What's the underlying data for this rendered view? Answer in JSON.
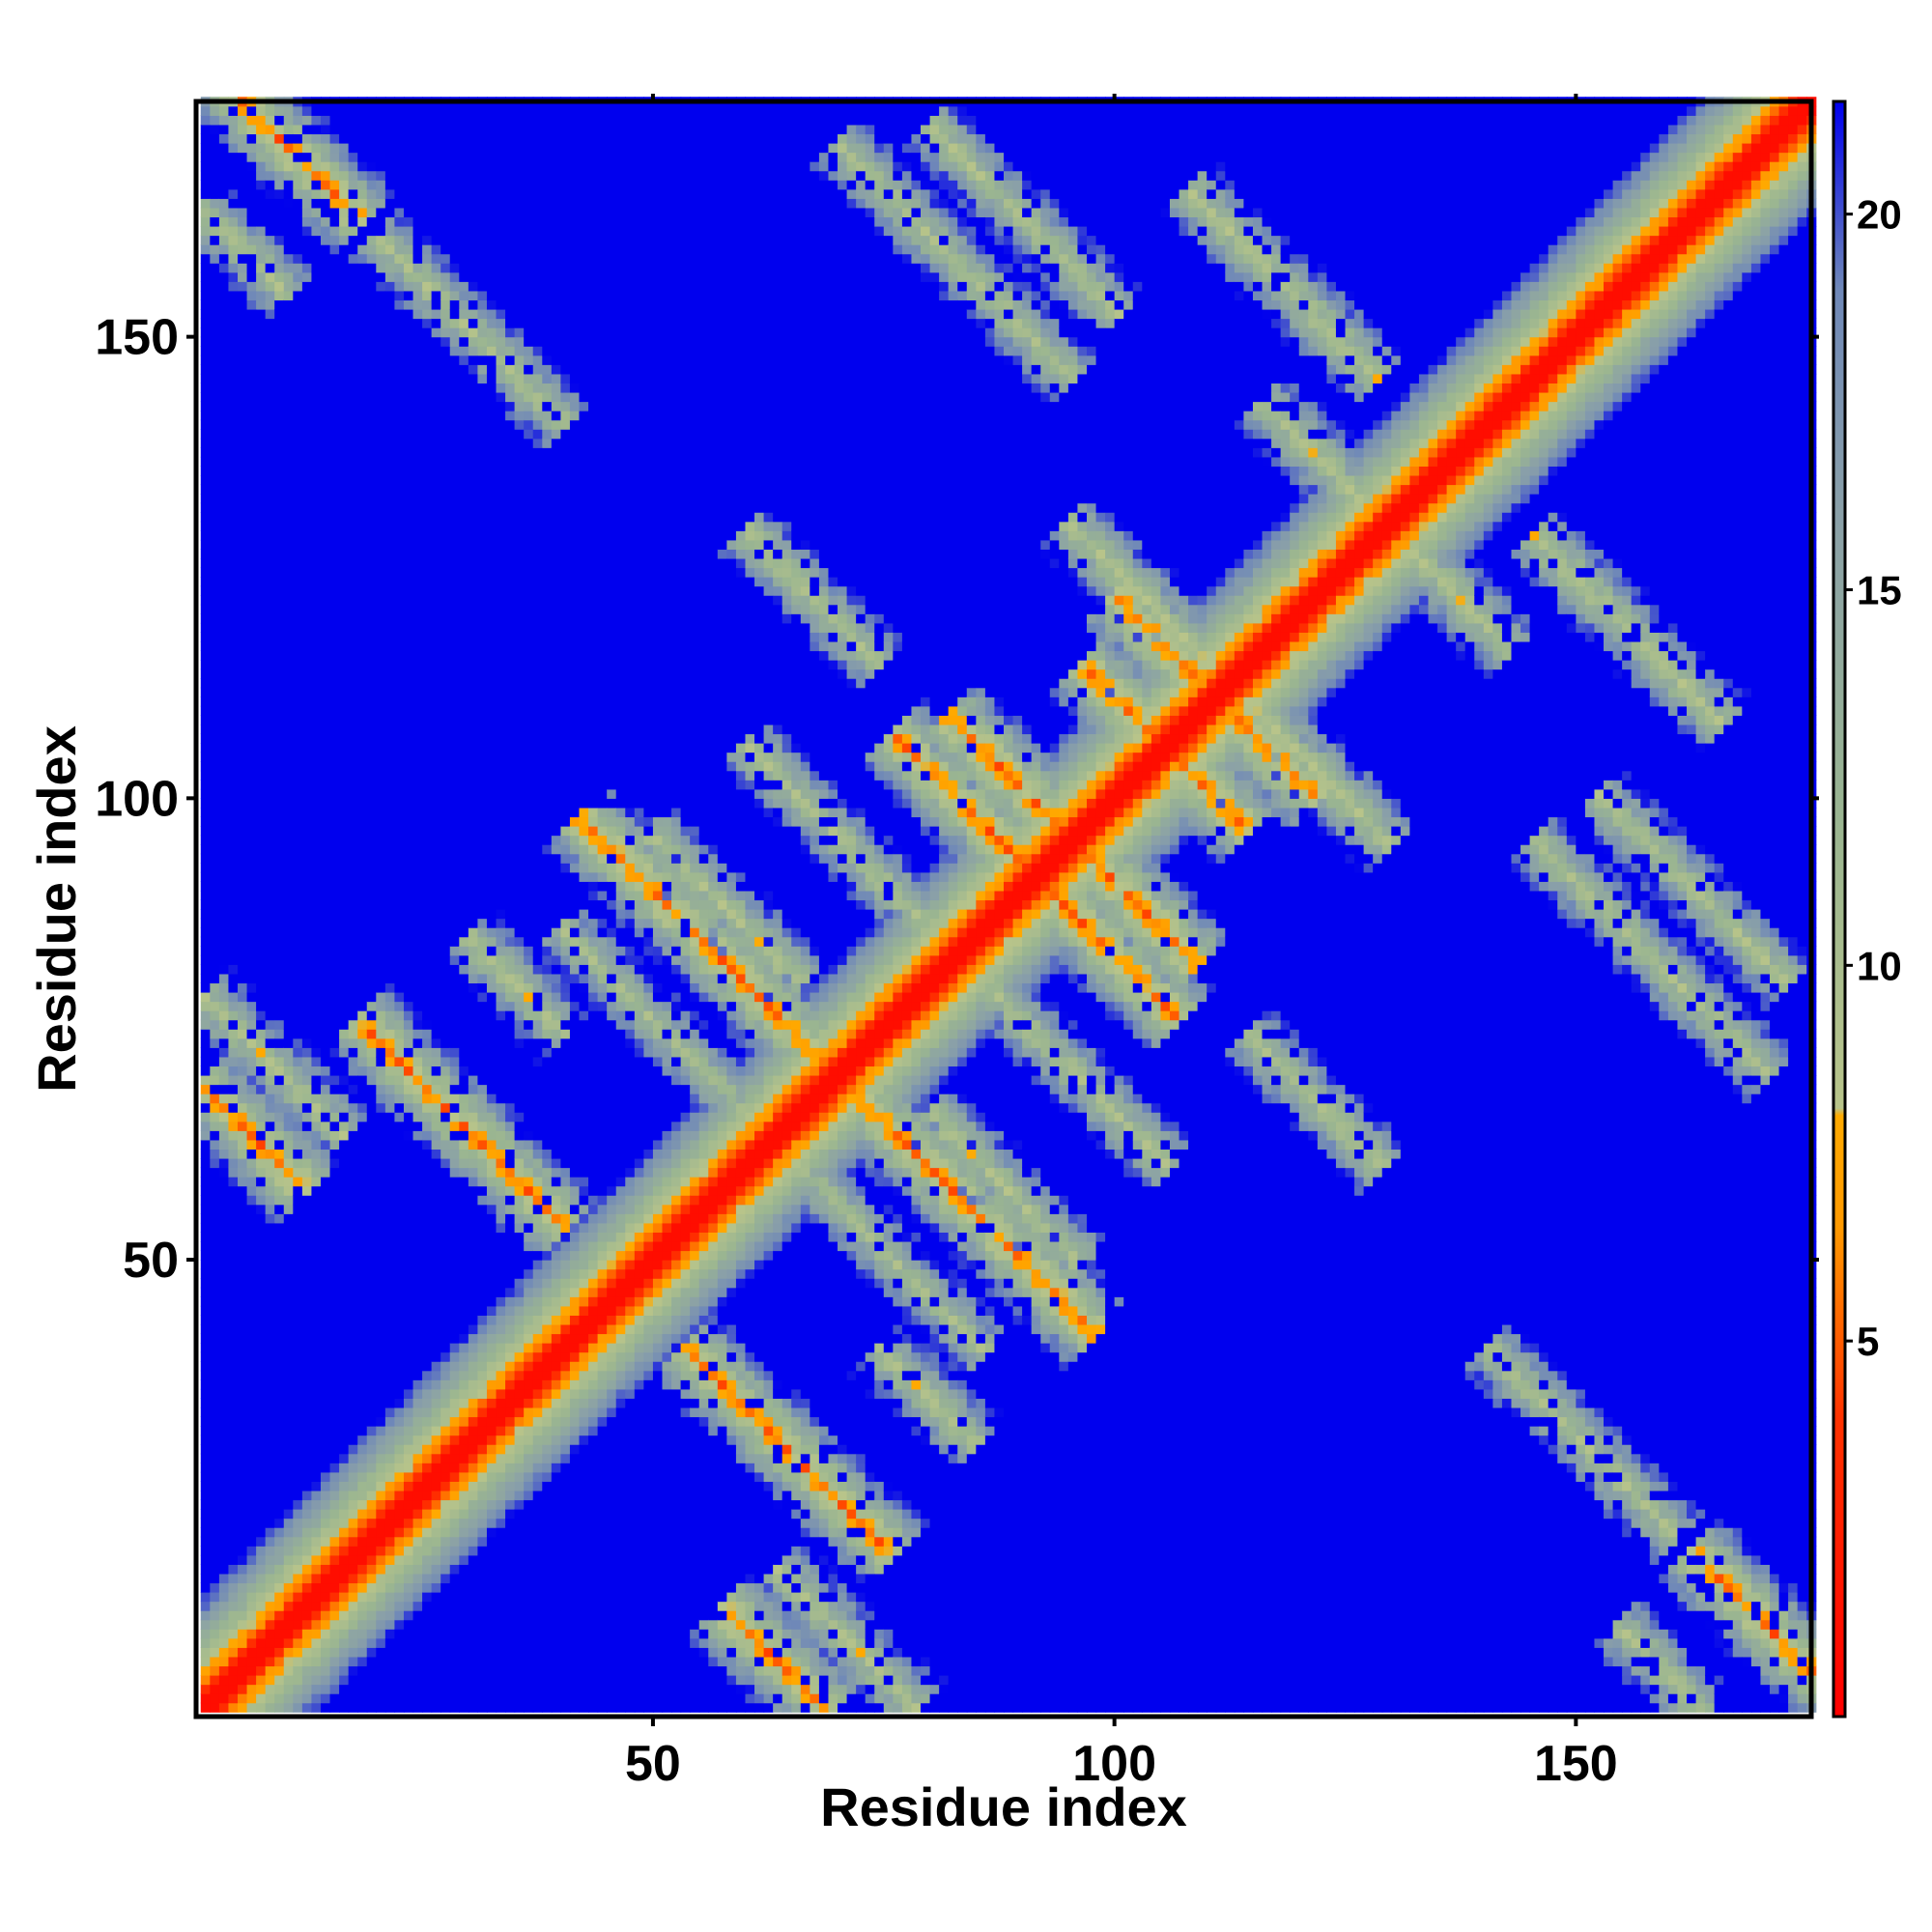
{
  "chart_data": {
    "type": "heatmap",
    "title": "",
    "xlabel": "Residue index",
    "ylabel": "Residue index",
    "n_residues": 175,
    "xlim": [
      1,
      175
    ],
    "ylim": [
      1,
      175
    ],
    "x_ticks": [
      50,
      100,
      150
    ],
    "y_ticks": [
      50,
      100,
      150
    ],
    "colorbar": {
      "ticks": [
        5,
        10,
        15,
        20
      ],
      "range": [
        0,
        21.5
      ],
      "stops": [
        {
          "value": 0,
          "color": "#ff0000"
        },
        {
          "value": 4,
          "color": "#ff3300"
        },
        {
          "value": 6.5,
          "color": "#ff9900"
        },
        {
          "value": 8,
          "color": "#ffaa00"
        },
        {
          "value": 8.1,
          "color": "#b8c48a"
        },
        {
          "value": 12,
          "color": "#9ab591"
        },
        {
          "value": 16,
          "color": "#8aa0a8"
        },
        {
          "value": 19,
          "color": "#6f88b8"
        },
        {
          "value": 21.5,
          "color": "#0000ee"
        }
      ]
    },
    "cutoff_color": "#0000ee",
    "diagonal_width": 3,
    "off_diagonal_bands": [
      {
        "center": 69,
        "i_range": [
          1,
          12
        ],
        "dist": 5.5
      },
      {
        "center": 79,
        "i_range": [
          1,
          16
        ],
        "dist": 9.0
      },
      {
        "center": 93,
        "i_range": [
          18,
          40
        ],
        "dist": 5.5
      },
      {
        "center": 139,
        "i_range": [
          42,
          70
        ],
        "dist": 5.5
      },
      {
        "center": 125,
        "i_range": [
          40,
          65
        ],
        "dist": 10.0
      },
      {
        "center": 165,
        "i_range": [
          60,
          80
        ],
        "dist": 9.5
      },
      {
        "center": 145,
        "i_range": [
          80,
          96
        ],
        "dist": 9.0
      },
      {
        "center": 221,
        "i_range": [
          100,
          116
        ],
        "dist": 5.5
      },
      {
        "center": 258,
        "i_range": [
          116,
          136
        ],
        "dist": 9.0
      },
      {
        "center": 190,
        "i_range": [
          82,
          104
        ],
        "dist": 5.5
      },
      {
        "center": 182,
        "i_range": [
          76,
          96
        ],
        "dist": 5.5
      },
      {
        "center": 210,
        "i_range": [
          100,
          114
        ],
        "dist": 5.5
      },
      {
        "center": 273,
        "i_range": [
          108,
          128
        ],
        "dist": 9.0
      },
      {
        "center": 224,
        "i_range": [
          95,
          126
        ],
        "dist": 9.0
      },
      {
        "center": 114,
        "i_range": [
          30,
          40
        ],
        "dist": 9.0
      },
      {
        "center": 180,
        "i_range": [
          1,
          18
        ],
        "dist": 5.5
      },
      {
        "center": 164,
        "i_range": [
          1,
          10
        ],
        "dist": 9.5
      },
      {
        "center": 180,
        "i_range": [
          20,
          40
        ],
        "dist": 9.5
      },
      {
        "center": 188,
        "i_range": [
          60,
          74
        ],
        "dist": 9.5
      },
      {
        "center": 240,
        "i_range": [
          70,
          95
        ],
        "dist": 9.5
      },
      {
        "center": 252,
        "i_range": [
          80,
          100
        ],
        "dist": 9.5
      }
    ]
  }
}
